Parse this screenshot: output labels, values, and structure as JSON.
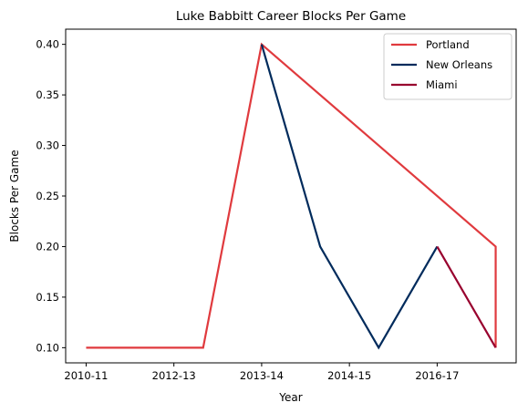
{
  "chart_data": {
    "type": "line",
    "title": "Luke Babbitt Career Blocks Per Game",
    "xlabel": "Year",
    "ylabel": "Blocks Per Game",
    "x_tick_labels": [
      "2010-11",
      "2012-13",
      "2013-14",
      "2014-15",
      "2016-17"
    ],
    "xlim": [
      -0.35,
      7.35
    ],
    "ylim": [
      0.085,
      0.415
    ],
    "y_ticks": [
      0.1,
      0.15,
      0.2,
      0.25,
      0.3,
      0.35,
      0.4
    ],
    "y_tick_labels": [
      "0.10",
      "0.15",
      "0.20",
      "0.25",
      "0.30",
      "0.35",
      "0.40"
    ],
    "grid": false,
    "legend_position": "top-right",
    "series": [
      {
        "name": "Portland",
        "color": "#E03A3E",
        "points": [
          [
            0,
            0.1
          ],
          [
            1,
            0.1
          ],
          [
            2,
            0.1
          ],
          [
            3,
            0.4
          ],
          [
            7,
            0.2
          ],
          [
            7,
            0.1
          ]
        ]
      },
      {
        "name": "New Orleans",
        "color": "#002B5C",
        "points": [
          [
            3,
            0.4
          ],
          [
            4,
            0.2
          ],
          [
            5,
            0.1
          ],
          [
            6,
            0.2
          ]
        ]
      },
      {
        "name": "Miami",
        "color": "#98002E",
        "points": [
          [
            6,
            0.2
          ],
          [
            7,
            0.1
          ]
        ]
      }
    ]
  }
}
